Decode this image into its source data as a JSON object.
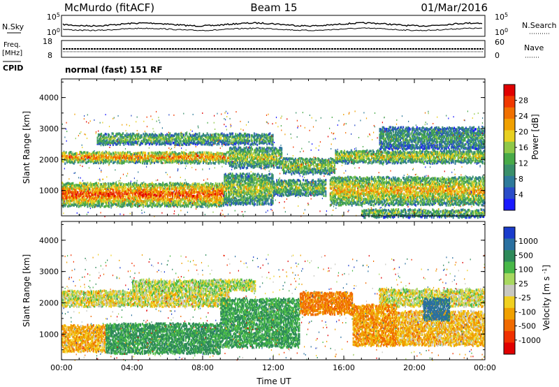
{
  "header": {
    "station": "McMurdo (fitACF)",
    "beam": "Beam 15",
    "date": "01/Mar/2016"
  },
  "nsky_panel": {
    "left_label": "N.Sky",
    "right_label": "N.Search",
    "left_ticks": [
      "10^5",
      "10^0"
    ],
    "right_ticks": [
      "10^5",
      "10^0"
    ]
  },
  "freq_panel": {
    "left_label_1": "Freq.",
    "left_label_2": "[MHz]",
    "right_label": "Nave",
    "left_ticks": [
      "18",
      "8"
    ],
    "right_ticks": [
      "60",
      "0"
    ]
  },
  "cpid": {
    "label": "CPID",
    "text": "normal (fast) 151 RF"
  },
  "chart_data": [
    {
      "type": "heatmap",
      "name": "power",
      "ylabel": "Slant Range [km]",
      "xlabel": "",
      "yticks": [
        "1000",
        "2000",
        "3000",
        "4000"
      ],
      "ylim": [
        180,
        4600
      ],
      "xlim": [
        0,
        24
      ],
      "colorbar": {
        "label": "Power [dB]",
        "ticks": [
          "4",
          "8",
          "12",
          "16",
          "20",
          "24",
          "28"
        ],
        "range": [
          0,
          32
        ],
        "colors": [
          "#1a1aff",
          "#2a4cc8",
          "#2e7a9a",
          "#3a8f6a",
          "#48aa48",
          "#8fc848",
          "#e8d020",
          "#f0a000",
          "#f07000",
          "#f03800",
          "#e00000"
        ]
      },
      "bands": [
        {
          "t0": 0.0,
          "t1": 9.5,
          "r0": 1950,
          "r1": 2300,
          "level": 0.8
        },
        {
          "t0": 9.5,
          "t1": 12.5,
          "r0": 1800,
          "r1": 2450,
          "level": 0.55
        },
        {
          "t0": 12.5,
          "t1": 15.5,
          "r0": 1600,
          "r1": 2100,
          "level": 0.55
        },
        {
          "t0": 15.5,
          "t1": 24.0,
          "r0": 1950,
          "r1": 2350,
          "level": 0.6
        },
        {
          "t0": 0.0,
          "t1": 9.2,
          "r0": 550,
          "r1": 1300,
          "level": 0.9
        },
        {
          "t0": 9.2,
          "t1": 12.0,
          "r0": 600,
          "r1": 1600,
          "level": 0.55
        },
        {
          "t0": 12.0,
          "t1": 15.0,
          "r0": 900,
          "r1": 1400,
          "level": 0.5
        },
        {
          "t0": 15.2,
          "t1": 24.0,
          "r0": 600,
          "r1": 1500,
          "level": 0.7
        },
        {
          "t0": 2.0,
          "t1": 12.0,
          "r0": 2550,
          "r1": 2900,
          "level": 0.45
        },
        {
          "t0": 18.0,
          "t1": 24.0,
          "r0": 2400,
          "r1": 3100,
          "level": 0.35
        },
        {
          "t0": 17.0,
          "t1": 24.0,
          "r0": 200,
          "r1": 450,
          "level": 0.45
        }
      ]
    },
    {
      "type": "heatmap",
      "name": "velocity",
      "ylabel": "Slant Range [km]",
      "xlabel": "Time UT",
      "xticks": [
        "00:00",
        "04:00",
        "08:00",
        "12:00",
        "16:00",
        "20:00",
        "00:00"
      ],
      "yticks": [
        "1000",
        "2000",
        "3000",
        "4000"
      ],
      "ylim": [
        180,
        4600
      ],
      "xlim": [
        0,
        24
      ],
      "colorbar": {
        "label": "Velocity [m s^-1]",
        "ticks": [
          "1000",
          "500",
          "100",
          "25",
          "-25",
          "-100",
          "-500",
          "-1000"
        ],
        "colors": [
          "#1a3ccc",
          "#2a70a0",
          "#2e8a5a",
          "#48b848",
          "#a8d860",
          "#c8c8c0",
          "#f0d020",
          "#f0a000",
          "#f06a00",
          "#f03000",
          "#e00000"
        ]
      },
      "bands": [
        {
          "t0": 0.0,
          "t1": 9.5,
          "r0": 1950,
          "r1": 2450,
          "vel": 0
        },
        {
          "t0": 18.0,
          "t1": 24.0,
          "r0": 1950,
          "r1": 2500,
          "vel": 0
        },
        {
          "t0": 0.0,
          "t1": 2.5,
          "r0": 500,
          "r1": 1350,
          "vel": -150
        },
        {
          "t0": 2.5,
          "t1": 9.0,
          "r0": 450,
          "r1": 1400,
          "vel": 300
        },
        {
          "t0": 9.0,
          "t1": 13.5,
          "r0": 650,
          "r1": 2200,
          "vel": 250
        },
        {
          "t0": 13.5,
          "t1": 16.5,
          "r0": 1700,
          "r1": 2400,
          "vel": -300
        },
        {
          "t0": 16.5,
          "t1": 19.0,
          "r0": 700,
          "r1": 2000,
          "vel": -200
        },
        {
          "t0": 19.0,
          "t1": 24.0,
          "r0": 700,
          "r1": 1800,
          "vel": -120
        },
        {
          "t0": 20.5,
          "t1": 22.0,
          "r0": 1500,
          "r1": 2200,
          "vel": 600
        },
        {
          "t0": 4.0,
          "t1": 11.0,
          "r0": 2450,
          "r1": 2800,
          "vel": 50
        }
      ]
    }
  ]
}
